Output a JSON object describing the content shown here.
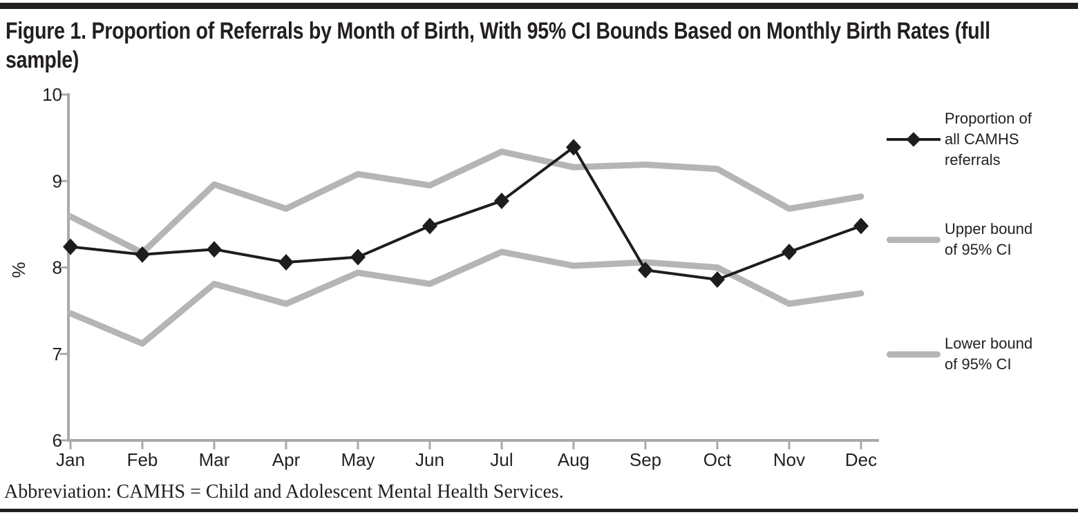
{
  "page": {
    "title": "Figure 1. Proportion of Referrals by Month of Birth, With 95% CI Bounds Based on Monthly Birth Rates (full sample)",
    "footnote": "Abbreviation: CAMHS = Child and Adolescent Mental Health Services."
  },
  "colors": {
    "text": "#231f20",
    "rule": "#231f20",
    "axis": "#a9a9a9",
    "series_black": "#1d1d1b",
    "series_gray": "#b5b5b5"
  },
  "legend": {
    "items": [
      {
        "label": "Proportion of\nall CAMHS\nreferrals",
        "swatch": "black-line-with-diamond"
      },
      {
        "label": "Upper bound\nof 95% CI",
        "swatch": "gray-line"
      },
      {
        "label": "Lower bound\nof 95% CI",
        "swatch": "gray-line"
      }
    ]
  },
  "chart_data": {
    "type": "line",
    "title": "Figure 1. Proportion of Referrals by Month of Birth, With 95% CI Bounds Based on Monthly Birth Rates (full sample)",
    "xlabel": "",
    "ylabel": "%",
    "ylim": [
      6,
      10
    ],
    "yticks": [
      6,
      7,
      8,
      9,
      10
    ],
    "grid": false,
    "legend_position": "right",
    "categories": [
      "Jan",
      "Feb",
      "Mar",
      "Apr",
      "May",
      "Jun",
      "Jul",
      "Aug",
      "Sep",
      "Oct",
      "Nov",
      "Dec"
    ],
    "series": [
      {
        "name": "Proportion of all CAMHS referrals",
        "style": "black_diamond",
        "color": "#1d1d1b",
        "values": [
          8.24,
          8.15,
          8.21,
          8.06,
          8.12,
          8.48,
          8.77,
          9.39,
          7.97,
          7.86,
          8.18,
          8.48
        ]
      },
      {
        "name": "Upper bound of 95% CI",
        "style": "gray_thick",
        "color": "#b5b5b5",
        "values": [
          8.59,
          8.17,
          8.96,
          8.68,
          9.08,
          8.95,
          9.34,
          9.16,
          9.19,
          9.14,
          8.68,
          8.82
        ]
      },
      {
        "name": "Lower bound of 95% CI",
        "style": "gray_thick",
        "color": "#b5b5b5",
        "values": [
          7.47,
          7.12,
          7.81,
          7.58,
          7.94,
          7.81,
          8.18,
          8.02,
          8.06,
          8.0,
          7.58,
          7.7
        ]
      }
    ]
  }
}
